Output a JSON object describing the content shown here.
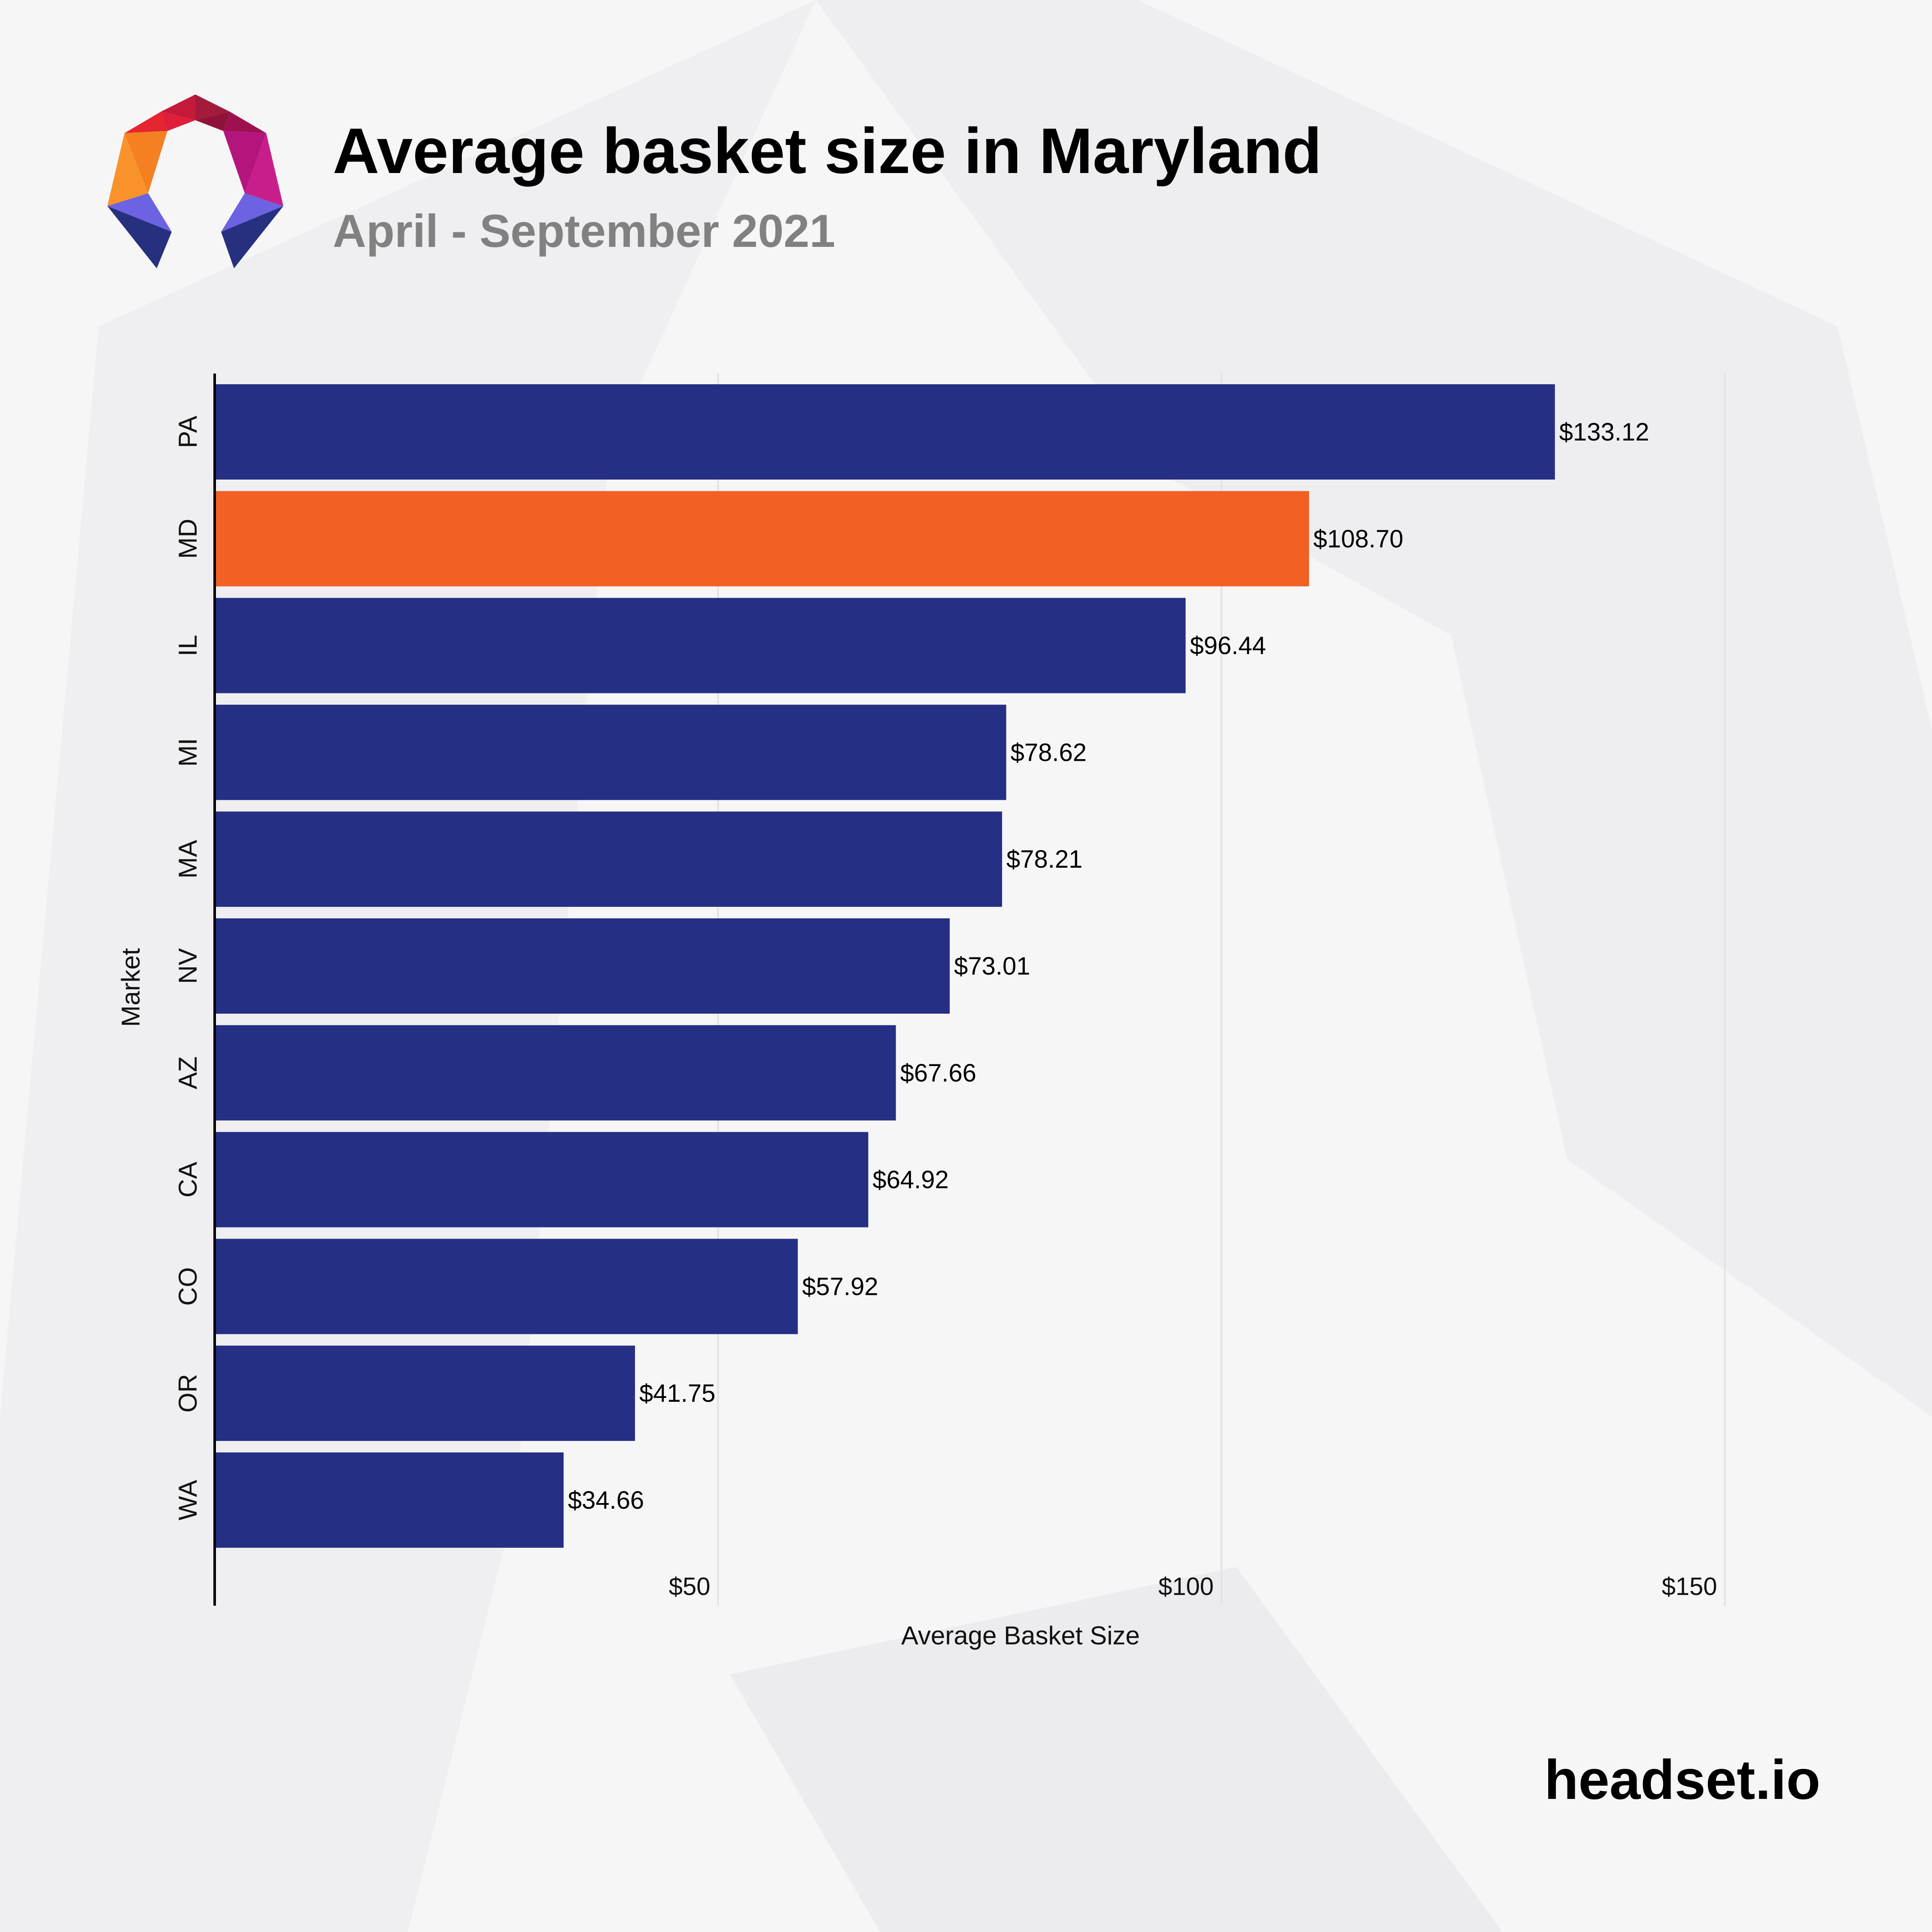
{
  "header": {
    "title": "Average basket size in Maryland",
    "subtitle": "April - September 2021"
  },
  "footer": {
    "brand": "headset.io"
  },
  "colors": {
    "default_bar": "#252f84",
    "highlight_bar": "#f26024",
    "gridline": "#e3e3e3",
    "axis": "#000000"
  },
  "chart_data": {
    "type": "bar",
    "orientation": "horizontal",
    "xlabel": "Average Basket Size",
    "ylabel": "Market",
    "xlim": [
      0,
      150
    ],
    "x_ticks": [
      50,
      100,
      150
    ],
    "x_tick_labels": [
      "$50",
      "$100",
      "$150"
    ],
    "categories": [
      "PA",
      "MD",
      "IL",
      "MI",
      "MA",
      "NV",
      "AZ",
      "CA",
      "CO",
      "OR",
      "WA"
    ],
    "values": [
      133.12,
      108.7,
      96.44,
      78.62,
      78.21,
      73.01,
      67.66,
      64.92,
      57.92,
      41.75,
      34.66
    ],
    "value_labels": [
      "$133.12",
      "$108.70",
      "$96.44",
      "$78.62",
      "$78.21",
      "$73.01",
      "$67.66",
      "$64.92",
      "$57.92",
      "$41.75",
      "$34.66"
    ],
    "highlight": "MD",
    "grid": true,
    "legend": "none"
  }
}
